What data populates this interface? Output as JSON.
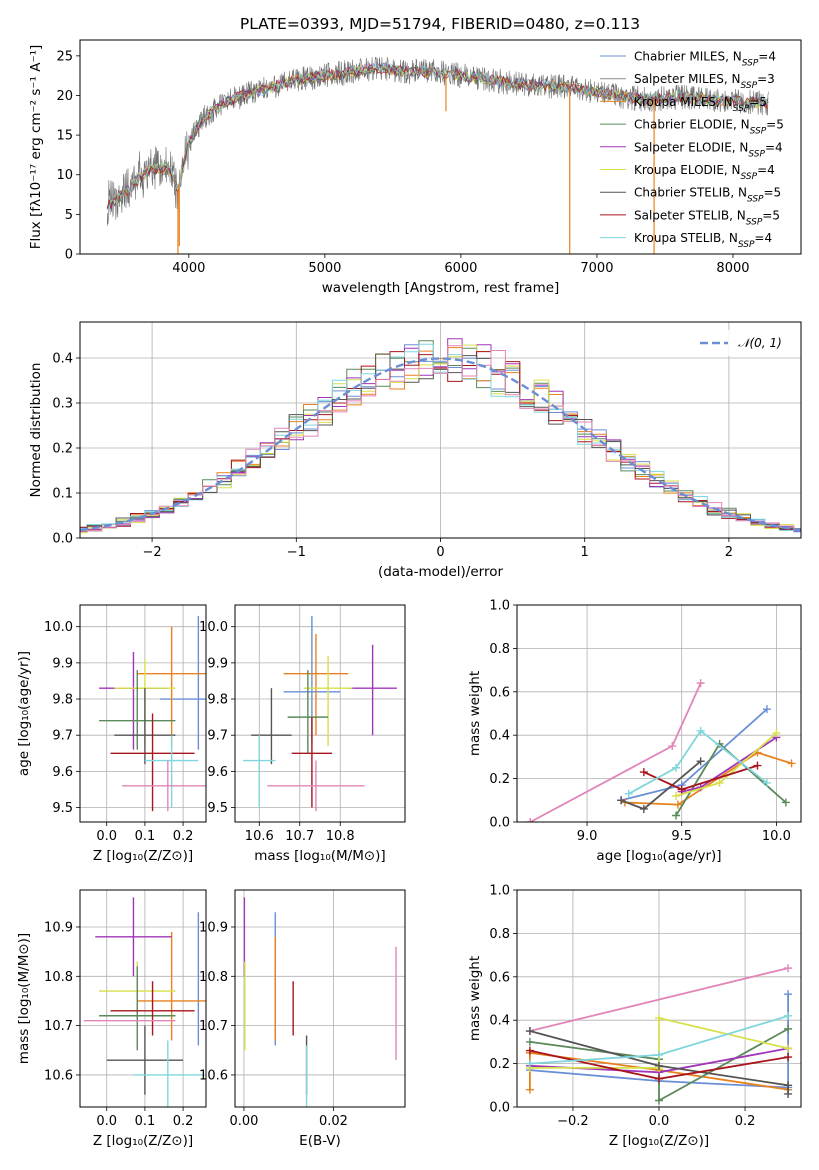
{
  "figure": {
    "title": "PLATE=0393, MJD=51794, FIBERID=0480, z=0.113"
  },
  "colors": {
    "Chabrier MILES": "#6a8fd6",
    "Salpeter MILES": "#8b8b8b",
    "Kroupa MILES": "#e8821e",
    "Chabrier ELODIE": "#5a8a5a",
    "Salpeter ELODIE": "#a035b8",
    "Kroupa ELODIE": "#d7df4a",
    "Chabrier STELIB": "#555555",
    "Salpeter STELIB": "#a8151c",
    "Kroupa STELIB": "#7fd6dc",
    "pink": "#e285b8",
    "gauss": "#6a8fd6"
  },
  "chart_data": [
    {
      "panel": "spectrum",
      "type": "line",
      "xlabel": "wavelength [Angstrom, rest frame]",
      "ylabel": "Flux [fλ10⁻¹⁷ erg cm⁻² s⁻¹ A⁻¹]",
      "xlim": [
        3200,
        8500
      ],
      "ylim": [
        0,
        27
      ],
      "xticks": [
        "4000",
        "5000",
        "6000",
        "7000",
        "8000"
      ],
      "yticks": [
        "0",
        "5",
        "10",
        "15",
        "20",
        "25"
      ],
      "legend_position": "right",
      "legend": [
        {
          "name": "Chabrier MILES",
          "nssp": "4"
        },
        {
          "name": "Salpeter MILES",
          "nssp": "3"
        },
        {
          "name": "Kroupa MILES",
          "nssp": "5"
        },
        {
          "name": "Chabrier ELODIE",
          "nssp": "5"
        },
        {
          "name": "Salpeter ELODIE",
          "nssp": "4"
        },
        {
          "name": "Kroupa ELODIE",
          "nssp": "4"
        },
        {
          "name": "Chabrier STELIB",
          "nssp": "5"
        },
        {
          "name": "Salpeter STELIB",
          "nssp": "5"
        },
        {
          "name": "Kroupa STELIB",
          "nssp": "4"
        }
      ],
      "continuum": [
        [
          3400,
          6.0
        ],
        [
          3550,
          8.0
        ],
        [
          3700,
          10.5
        ],
        [
          3850,
          11.0
        ],
        [
          3920,
          8.0
        ],
        [
          4000,
          14.0
        ],
        [
          4100,
          17.0
        ],
        [
          4250,
          19.0
        ],
        [
          4400,
          20.0
        ],
        [
          4600,
          21.0
        ],
        [
          4800,
          22.0
        ],
        [
          5000,
          22.5
        ],
        [
          5200,
          23.0
        ],
        [
          5400,
          23.5
        ],
        [
          5600,
          23.0
        ],
        [
          5800,
          23.0
        ],
        [
          6000,
          22.5
        ],
        [
          6200,
          22.0
        ],
        [
          6400,
          21.5
        ],
        [
          6600,
          21.2
        ],
        [
          6800,
          21.0
        ],
        [
          7000,
          20.5
        ],
        [
          7200,
          19.8
        ],
        [
          7400,
          19.5
        ],
        [
          7600,
          19.8
        ],
        [
          7800,
          19.5
        ],
        [
          8000,
          19.3
        ],
        [
          8260,
          19.0
        ]
      ],
      "spikes": [
        {
          "x": 3920,
          "ymin": 0.0
        },
        {
          "x": 3930,
          "ymin": 1.0
        },
        {
          "x": 6800,
          "ymin": 0.0
        },
        {
          "x": 7420,
          "ymin": 0.0
        },
        {
          "x": 5890,
          "ymin": 18.0
        }
      ]
    },
    {
      "panel": "residual histogram",
      "type": "line",
      "xlabel": "(data-model)/error",
      "ylabel": "Normed distribution",
      "xlim": [
        -2.5,
        2.5
      ],
      "ylim": [
        0,
        0.48
      ],
      "xticks": [
        "−2",
        "−1",
        "0",
        "1",
        "2"
      ],
      "yticks": [
        "0.0",
        "0.1",
        "0.2",
        "0.3",
        "0.4"
      ],
      "legend_position": "top-right",
      "legend": [
        "𝒩(0, 1)"
      ],
      "gaussian": {
        "mean": 0,
        "sigma": 1
      },
      "bin_width": 0.1,
      "series": [
        {
          "name": "Chabrier MILES",
          "color": "#6a8fd6"
        },
        {
          "name": "Kroupa MILES",
          "color": "#e8821e"
        },
        {
          "name": "Chabrier ELODIE",
          "color": "#5a8a5a"
        },
        {
          "name": "Salpeter ELODIE",
          "color": "#a035b8"
        },
        {
          "name": "Kroupa ELODIE",
          "color": "#d7df4a"
        },
        {
          "name": "Salpeter STELIB",
          "color": "#a8151c"
        },
        {
          "name": "Kroupa STELIB",
          "color": "#7fd6dc"
        },
        {
          "name": "Chabrier STELIB",
          "color": "#555555"
        },
        {
          "name": "pink",
          "color": "#e285b8"
        }
      ]
    },
    {
      "panel": "age vs Z",
      "type": "scatter",
      "xlabel": "Z [log₁₀(Z/Z⊙)]",
      "ylabel": "age  [log₁₀(age/yr)]",
      "xlim": [
        -0.07,
        0.26
      ],
      "ylim": [
        9.46,
        10.06
      ],
      "xticks": [
        "0.0",
        "0.1",
        "0.2"
      ],
      "yticks": [
        "9.5",
        "9.6",
        "9.7",
        "9.8",
        "9.9",
        "10.0"
      ],
      "points": [
        {
          "color": "#6a8fd6",
          "x": 0.24,
          "y": 9.8,
          "xerr": 0.1,
          "yerr": [
            0.14,
            0.23
          ]
        },
        {
          "color": "#e8821e",
          "x": 0.17,
          "y": 9.87,
          "xerr": 0.09,
          "yerr": [
            0.2,
            0.13
          ]
        },
        {
          "color": "#a035b8",
          "x": 0.07,
          "y": 9.83,
          "xerr": 0.09,
          "yerr": [
            0.17,
            0.1
          ]
        },
        {
          "color": "#d7df4a",
          "x": 0.1,
          "y": 9.83,
          "xerr": 0.08,
          "yerr": [
            0.16,
            0.08
          ]
        },
        {
          "color": "#5a8a5a",
          "x": 0.08,
          "y": 9.74,
          "xerr": 0.1,
          "yerr": [
            0.08,
            0.14
          ]
        },
        {
          "color": "#555555",
          "x": 0.1,
          "y": 9.7,
          "xerr": 0.08,
          "yerr": [
            0.08,
            0.13
          ]
        },
        {
          "color": "#a8151c",
          "x": 0.12,
          "y": 9.65,
          "xerr": 0.11,
          "yerr": [
            0.16,
            0.11
          ]
        },
        {
          "color": "#7fd6dc",
          "x": 0.17,
          "y": 9.63,
          "xerr": 0.07,
          "yerr": [
            0.13,
            0.07
          ]
        },
        {
          "color": "#e285b8",
          "x": 0.16,
          "y": 9.56,
          "xerr": 0.12,
          "yerr": [
            0.07,
            0.07
          ]
        }
      ]
    },
    {
      "panel": "age vs mass",
      "type": "scatter",
      "xlabel": "mass [log₁₀(M/M⊙)]",
      "ylabel": "",
      "xlim": [
        10.54,
        10.96
      ],
      "ylim": [
        9.46,
        10.06
      ],
      "xticks": [
        "10.6",
        "10.7",
        "10.8"
      ],
      "yticks": [
        "9.5",
        "9.6",
        "9.7",
        "9.8",
        "9.9",
        "10.0"
      ],
      "points": [
        {
          "color": "#6a8fd6",
          "x": 10.73,
          "y": 9.82,
          "xerr": 0.07,
          "yerr": [
            0.14,
            0.21
          ]
        },
        {
          "color": "#e8821e",
          "x": 10.74,
          "y": 9.87,
          "xerr": 0.08,
          "yerr": [
            0.17,
            0.11
          ]
        },
        {
          "color": "#a035b8",
          "x": 10.88,
          "y": 9.83,
          "xerr": 0.06,
          "yerr": [
            0.13,
            0.12
          ]
        },
        {
          "color": "#d7df4a",
          "x": 10.77,
          "y": 9.83,
          "xerr": 0.06,
          "yerr": [
            0.16,
            0.09
          ]
        },
        {
          "color": "#5a8a5a",
          "x": 10.72,
          "y": 9.75,
          "xerr": 0.05,
          "yerr": [
            0.1,
            0.13
          ]
        },
        {
          "color": "#555555",
          "x": 10.63,
          "y": 9.7,
          "xerr": 0.05,
          "yerr": [
            0.08,
            0.13
          ]
        },
        {
          "color": "#a8151c",
          "x": 10.73,
          "y": 9.65,
          "xerr": 0.05,
          "yerr": [
            0.15,
            0.1
          ]
        },
        {
          "color": "#7fd6dc",
          "x": 10.6,
          "y": 9.63,
          "xerr": 0.04,
          "yerr": [
            0.13,
            0.07
          ]
        },
        {
          "color": "#e285b8",
          "x": 10.74,
          "y": 9.56,
          "xerr": 0.12,
          "yerr": [
            0.07,
            0.07
          ]
        }
      ]
    },
    {
      "panel": "mass weight vs age",
      "type": "line",
      "xlabel": "age  [log₁₀(age/yr)]",
      "ylabel": "mass weight",
      "xlim": [
        8.63,
        10.13
      ],
      "ylim": [
        0,
        1.0
      ],
      "xticks": [
        "9.0",
        "9.5",
        "10.0"
      ],
      "yticks": [
        "0.0",
        "0.2",
        "0.4",
        "0.6",
        "0.8",
        "1.0"
      ],
      "series": [
        {
          "name": "pink",
          "color": "#e285b8",
          "x": [
            8.7,
            9.45,
            9.6
          ],
          "y": [
            0.0,
            0.35,
            0.64
          ]
        },
        {
          "name": "Chabrier MILES",
          "color": "#6a8fd6",
          "x": [
            9.18,
            9.5,
            9.95
          ],
          "y": [
            0.1,
            0.17,
            0.52
          ]
        },
        {
          "name": "Kroupa MILES",
          "color": "#e8821e",
          "x": [
            9.2,
            9.48,
            9.9,
            10.08
          ],
          "y": [
            0.09,
            0.08,
            0.32,
            0.27
          ]
        },
        {
          "name": "Chabrier ELODIE",
          "color": "#5a8a5a",
          "x": [
            9.47,
            9.7,
            10.05
          ],
          "y": [
            0.03,
            0.36,
            0.09
          ]
        },
        {
          "name": "Salpeter ELODIE",
          "color": "#a035b8",
          "x": [
            9.5,
            9.6,
            10.0
          ],
          "y": [
            0.14,
            0.16,
            0.39
          ]
        },
        {
          "name": "Kroupa ELODIE",
          "color": "#d7df4a",
          "x": [
            9.47,
            9.7,
            10.0
          ],
          "y": [
            0.12,
            0.18,
            0.41
          ]
        },
        {
          "name": "Chabrier STELIB",
          "color": "#555555",
          "x": [
            9.18,
            9.3,
            9.6
          ],
          "y": [
            0.1,
            0.06,
            0.28
          ]
        },
        {
          "name": "Salpeter STELIB",
          "color": "#a8151c",
          "x": [
            9.3,
            9.5,
            9.9
          ],
          "y": [
            0.23,
            0.15,
            0.26
          ]
        },
        {
          "name": "Kroupa STELIB",
          "color": "#7fd6dc",
          "x": [
            9.22,
            9.47,
            9.6,
            9.95
          ],
          "y": [
            0.13,
            0.25,
            0.42,
            0.18
          ]
        }
      ]
    },
    {
      "panel": "mass vs Z",
      "type": "scatter",
      "xlabel": "Z [log₁₀(Z/Z⊙)]",
      "ylabel": "mass [log₁₀(M/M⊙)]",
      "xlim": [
        -0.07,
        0.26
      ],
      "ylim": [
        10.535,
        10.975
      ],
      "xticks": [
        "0.0",
        "0.1",
        "0.2"
      ],
      "yticks": [
        "10.6",
        "10.7",
        "10.8",
        "10.9"
      ],
      "points": [
        {
          "color": "#6a8fd6",
          "x": 0.24,
          "y": 10.77,
          "xerr": 0.0,
          "yerr": [
            0.11,
            0.16
          ]
        },
        {
          "color": "#e8821e",
          "x": 0.17,
          "y": 10.75,
          "xerr": 0.09,
          "yerr": [
            0.08,
            0.14
          ]
        },
        {
          "color": "#a035b8",
          "x": 0.07,
          "y": 10.88,
          "xerr": 0.1,
          "yerr": [
            0.08,
            0.08
          ]
        },
        {
          "color": "#d7df4a",
          "x": 0.08,
          "y": 10.77,
          "xerr": 0.1,
          "yerr": [
            0.07,
            0.06
          ]
        },
        {
          "color": "#5a8a5a",
          "x": 0.08,
          "y": 10.72,
          "xerr": 0.1,
          "yerr": [
            0.07,
            0.1
          ]
        },
        {
          "color": "#555555",
          "x": 0.1,
          "y": 10.63,
          "xerr": 0.1,
          "yerr": [
            0.07,
            0.07
          ]
        },
        {
          "color": "#a8151c",
          "x": 0.12,
          "y": 10.73,
          "xerr": 0.11,
          "yerr": [
            0.05,
            0.06
          ]
        },
        {
          "color": "#7fd6dc",
          "x": 0.16,
          "y": 10.6,
          "xerr": 0.09,
          "yerr": [
            0.07,
            0.07
          ]
        },
        {
          "color": "#e285b8",
          "x": 0.06,
          "y": 10.71,
          "xerr": 0.12,
          "yerr": [
            0.0,
            0.0
          ]
        }
      ]
    },
    {
      "panel": "mass vs E(B-V)",
      "type": "scatter",
      "xlabel": "E(B-V)",
      "ylabel": "",
      "xlim": [
        -0.002,
        0.036
      ],
      "ylim": [
        10.535,
        10.975
      ],
      "xticks": [
        "0.00",
        "0.02"
      ],
      "yticks": [
        "10.6",
        "10.7",
        "10.8",
        "10.9"
      ],
      "points": [
        {
          "color": "#a035b8",
          "x": 0.0001,
          "y": 10.88,
          "xerr": 0,
          "yerr": [
            0.08,
            0.08
          ]
        },
        {
          "color": "#d7df4a",
          "x": 0.0002,
          "y": 10.73,
          "xerr": 0,
          "yerr": [
            0.08,
            0.1
          ]
        },
        {
          "color": "#6a8fd6",
          "x": 0.007,
          "y": 10.8,
          "xerr": 0,
          "yerr": [
            0.14,
            0.13
          ]
        },
        {
          "color": "#e8821e",
          "x": 0.007,
          "y": 10.77,
          "xerr": 0,
          "yerr": [
            0.1,
            0.11
          ]
        },
        {
          "color": "#a8151c",
          "x": 0.011,
          "y": 10.74,
          "xerr": 0,
          "yerr": [
            0.06,
            0.05
          ]
        },
        {
          "color": "#555555",
          "x": 0.014,
          "y": 10.63,
          "xerr": 0,
          "yerr": [
            0.07,
            0.05
          ]
        },
        {
          "color": "#7fd6dc",
          "x": 0.014,
          "y": 10.6,
          "xerr": 0,
          "yerr": [
            0.07,
            0.06
          ]
        },
        {
          "color": "#e285b8",
          "x": 0.034,
          "y": 10.74,
          "xerr": 0,
          "yerr": [
            0.11,
            0.12
          ]
        }
      ]
    },
    {
      "panel": "mass weight vs Z",
      "type": "line",
      "xlabel": "Z [log₁₀(Z/Z⊙)]",
      "ylabel": "mass weight",
      "xlim": [
        -0.33,
        0.33
      ],
      "ylim": [
        0,
        1.0
      ],
      "xticks": [
        "−0.2",
        "0.0",
        "0.2"
      ],
      "yticks": [
        "0.0",
        "0.2",
        "0.4",
        "0.6",
        "0.8",
        "1.0"
      ],
      "series": [
        {
          "name": "pink",
          "color": "#e285b8",
          "x": [
            -0.3,
            0.3
          ],
          "y": [
            0.35,
            0.64
          ]
        },
        {
          "name": "Chabrier MILES",
          "color": "#6a8fd6",
          "x": [
            -0.3,
            0.0,
            0.3,
            0.3
          ],
          "y": [
            0.17,
            0.12,
            0.09,
            0.52
          ]
        },
        {
          "name": "Kroupa MILES",
          "color": "#e8821e",
          "x": [
            -0.3,
            -0.3,
            0.0,
            0.3
          ],
          "y": [
            0.08,
            0.25,
            0.17,
            0.08
          ]
        },
        {
          "name": "Chabrier ELODIE",
          "color": "#5a8a5a",
          "x": [
            -0.3,
            0.0,
            0.0,
            0.3
          ],
          "y": [
            0.3,
            0.22,
            0.03,
            0.36
          ]
        },
        {
          "name": "Salpeter ELODIE",
          "color": "#a035b8",
          "x": [
            -0.3,
            0.0,
            0.3
          ],
          "y": [
            0.19,
            0.16,
            0.27
          ]
        },
        {
          "name": "Kroupa ELODIE",
          "color": "#d7df4a",
          "x": [
            -0.3,
            0.0,
            0.0,
            0.3
          ],
          "y": [
            0.18,
            0.18,
            0.41,
            0.27
          ]
        },
        {
          "name": "Chabrier STELIB",
          "color": "#555555",
          "x": [
            -0.3,
            0.0,
            0.3,
            0.3
          ],
          "y": [
            0.35,
            0.19,
            0.1,
            0.06
          ]
        },
        {
          "name": "Salpeter STELIB",
          "color": "#a8151c",
          "x": [
            -0.3,
            0.0,
            0.3
          ],
          "y": [
            0.26,
            0.13,
            0.23
          ]
        },
        {
          "name": "Kroupa STELIB",
          "color": "#7fd6dc",
          "x": [
            -0.3,
            0.0,
            0.3
          ],
          "y": [
            0.2,
            0.24,
            0.42
          ]
        }
      ]
    }
  ]
}
